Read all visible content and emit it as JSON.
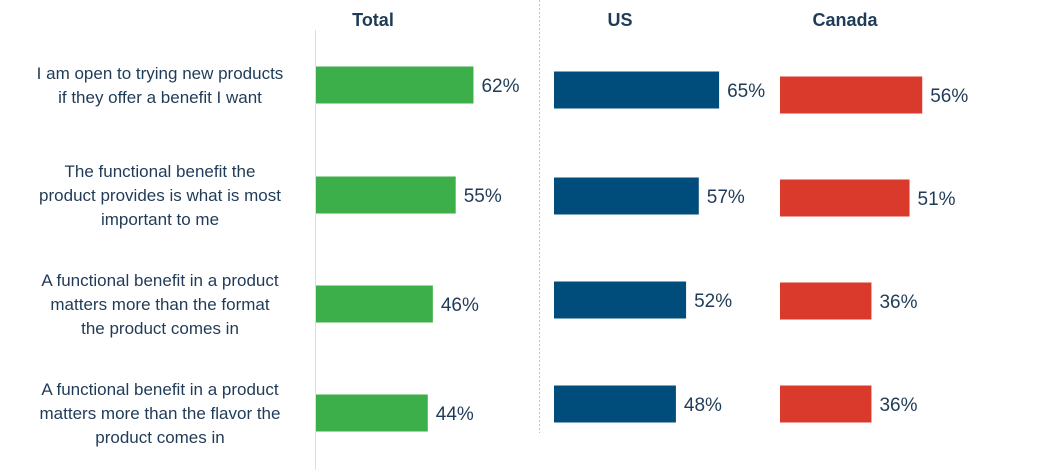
{
  "chart_data": {
    "type": "bar",
    "orientation": "horizontal",
    "categories": [
      [
        "I am open to trying new products",
        "if they offer a benefit I want"
      ],
      [
        "The functional benefit the",
        "product provides is what is most",
        "important to me"
      ],
      [
        "A functional benefit in a product",
        "matters more than the format",
        "the product comes in"
      ],
      [
        "A functional benefit in a product",
        "matters more than the flavor the",
        "product comes in"
      ]
    ],
    "series": [
      {
        "name": "Total",
        "color": "#3daf4a",
        "values": [
          62,
          55,
          46,
          44
        ],
        "labels": [
          "62%",
          "55%",
          "46%",
          "44%"
        ]
      },
      {
        "name": "US",
        "color": "#004c7a",
        "values": [
          65,
          57,
          52,
          48
        ],
        "labels": [
          "65%",
          "57%",
          "52%",
          "48%"
        ]
      },
      {
        "name": "Canada",
        "color": "#d93a2b",
        "values": [
          56,
          51,
          36,
          36
        ],
        "labels": [
          "56%",
          "51%",
          "36%",
          "36%"
        ]
      }
    ],
    "unit": "%",
    "grid": false
  }
}
